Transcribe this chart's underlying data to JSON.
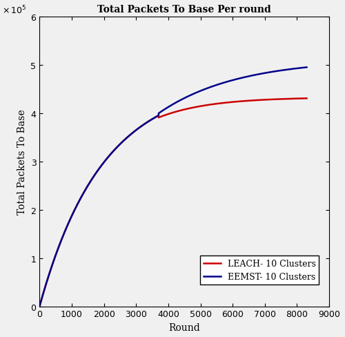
{
  "title": "Total Packets To Base Per round",
  "xlabel": "Round",
  "ylabel": "Total Packets To Base",
  "xlim": [
    0,
    9000
  ],
  "ylim": [
    0,
    600000
  ],
  "xticks": [
    0,
    1000,
    2000,
    3000,
    4000,
    5000,
    6000,
    7000,
    8000,
    9000
  ],
  "yticks": [
    0,
    100000,
    200000,
    300000,
    400000,
    500000,
    600000
  ],
  "eemst_color": "#00008B",
  "leach_color": "#CC0000",
  "eemst_label": "EEMST- 10 Clusters",
  "leach_label": "LEACH- 10 Clusters",
  "line_width": 1.8,
  "background_color": "#f0f0f0",
  "scale_factor": 100000,
  "eemst_max": 512000,
  "leach_max": 433000,
  "split_round": 3700,
  "eemst_tau": 1600,
  "leach_tau": 1100,
  "x_max": 8300
}
